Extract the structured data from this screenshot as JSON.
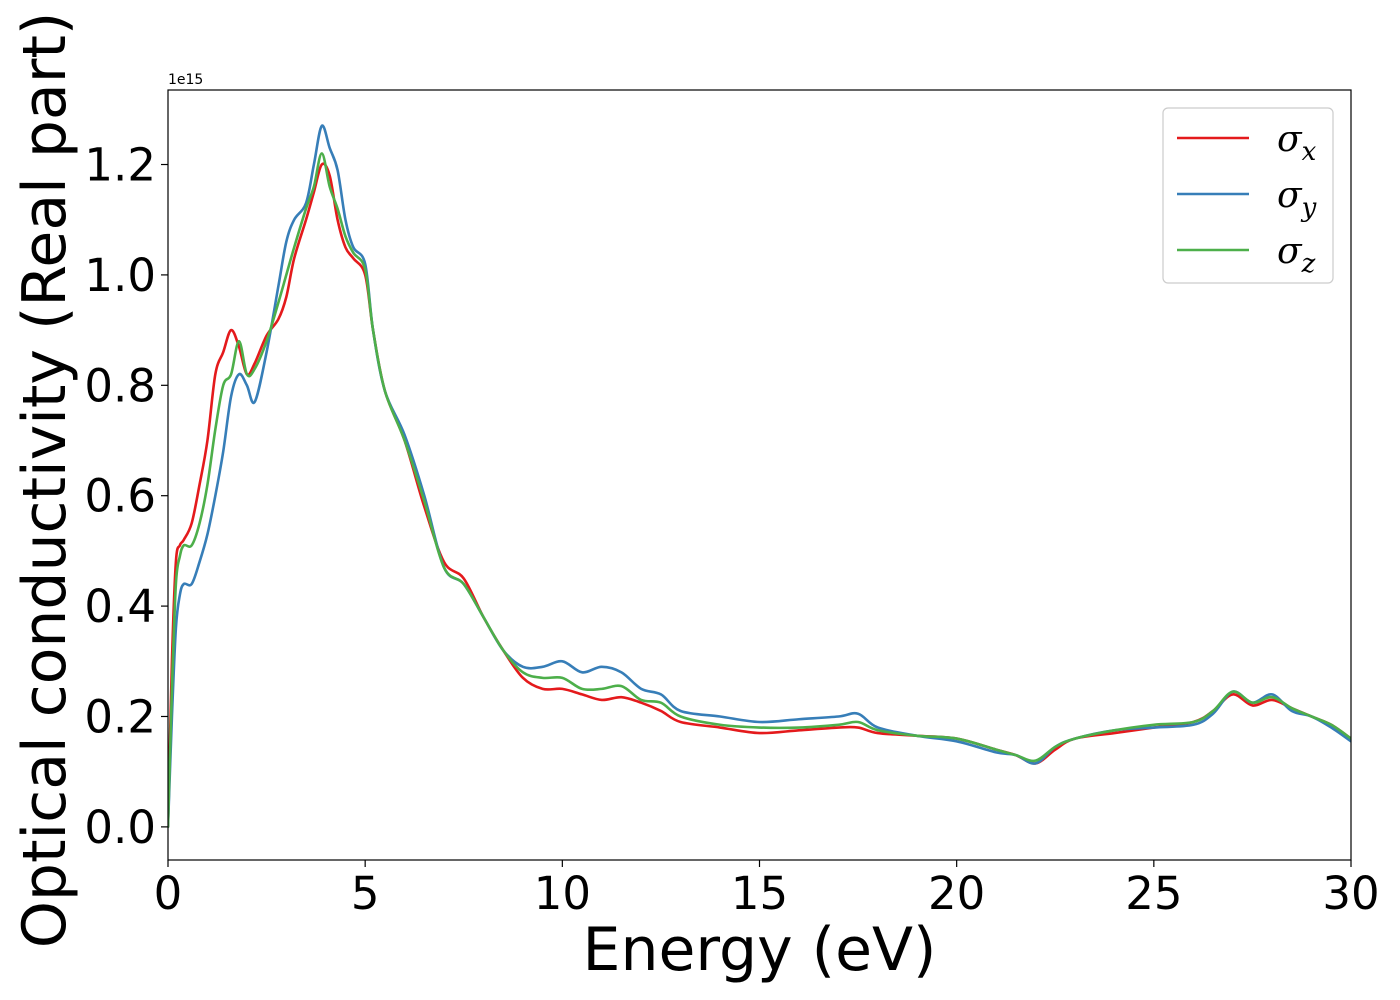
{
  "chart_data": {
    "type": "line",
    "title": "",
    "xlabel": "Energy (eV)",
    "ylabel": "Optical conductivity (Real part)",
    "y_offset_text": "1e15",
    "xlim": [
      0,
      30
    ],
    "ylim": [
      -0.06,
      1.335
    ],
    "x_ticks": [
      0,
      5,
      10,
      15,
      20,
      25,
      30
    ],
    "x_tick_labels": [
      "0",
      "5",
      "10",
      "15",
      "20",
      "25",
      "30"
    ],
    "y_ticks": [
      0.0,
      0.2,
      0.4,
      0.6,
      0.8,
      1.0,
      1.2
    ],
    "y_tick_labels": [
      "0.0",
      "0.2",
      "0.4",
      "0.6",
      "0.8",
      "1.0",
      "1.2"
    ],
    "grid": false,
    "legend_position": "top-right",
    "series": [
      {
        "name": "σ",
        "subscript": "x",
        "color": "#e41a1c",
        "x": [
          0,
          0.1,
          0.2,
          0.3,
          0.4,
          0.6,
          0.8,
          1.0,
          1.2,
          1.4,
          1.6,
          1.8,
          2.0,
          2.2,
          2.5,
          2.8,
          3.0,
          3.2,
          3.5,
          3.7,
          3.9,
          4.1,
          4.3,
          4.5,
          4.7,
          5.0,
          5.2,
          5.5,
          6.0,
          6.5,
          7.0,
          7.5,
          8.0,
          8.5,
          9.0,
          9.5,
          10.0,
          10.5,
          11.0,
          11.5,
          12.0,
          12.5,
          13.0,
          14.0,
          15.0,
          16.0,
          17.0,
          17.5,
          18.0,
          19.0,
          20.0,
          21.0,
          21.5,
          22.0,
          22.5,
          23.0,
          24.0,
          25.0,
          26.0,
          26.5,
          27.0,
          27.5,
          28.0,
          28.5,
          29.0,
          29.5,
          30.0
        ],
        "y": [
          0.0,
          0.3,
          0.48,
          0.51,
          0.52,
          0.55,
          0.62,
          0.7,
          0.82,
          0.86,
          0.9,
          0.87,
          0.82,
          0.84,
          0.89,
          0.92,
          0.96,
          1.03,
          1.1,
          1.15,
          1.2,
          1.18,
          1.1,
          1.05,
          1.03,
          1.0,
          0.9,
          0.79,
          0.7,
          0.58,
          0.48,
          0.45,
          0.38,
          0.32,
          0.27,
          0.25,
          0.25,
          0.24,
          0.23,
          0.235,
          0.225,
          0.21,
          0.19,
          0.18,
          0.17,
          0.175,
          0.18,
          0.18,
          0.17,
          0.165,
          0.16,
          0.14,
          0.13,
          0.115,
          0.14,
          0.16,
          0.17,
          0.18,
          0.19,
          0.21,
          0.24,
          0.22,
          0.23,
          0.215,
          0.2,
          0.185,
          0.16
        ]
      },
      {
        "name": "σ",
        "subscript": "y",
        "color": "#377eb8",
        "x": [
          0,
          0.1,
          0.2,
          0.3,
          0.4,
          0.6,
          0.8,
          1.0,
          1.2,
          1.4,
          1.6,
          1.8,
          2.0,
          2.2,
          2.5,
          2.8,
          3.0,
          3.2,
          3.5,
          3.7,
          3.9,
          4.1,
          4.3,
          4.5,
          4.7,
          5.0,
          5.2,
          5.5,
          6.0,
          6.5,
          7.0,
          7.5,
          8.0,
          8.5,
          9.0,
          9.5,
          10.0,
          10.5,
          11.0,
          11.5,
          12.0,
          12.5,
          13.0,
          14.0,
          15.0,
          16.0,
          17.0,
          17.5,
          18.0,
          19.0,
          20.0,
          21.0,
          21.5,
          22.0,
          22.5,
          23.0,
          24.0,
          25.0,
          26.0,
          26.5,
          27.0,
          27.5,
          28.0,
          28.5,
          29.0,
          29.5,
          30.0
        ],
        "y": [
          0.0,
          0.2,
          0.36,
          0.42,
          0.44,
          0.44,
          0.48,
          0.53,
          0.6,
          0.68,
          0.78,
          0.82,
          0.8,
          0.77,
          0.86,
          0.98,
          1.06,
          1.1,
          1.13,
          1.2,
          1.27,
          1.23,
          1.19,
          1.1,
          1.05,
          1.02,
          0.9,
          0.79,
          0.71,
          0.6,
          0.47,
          0.44,
          0.38,
          0.32,
          0.29,
          0.29,
          0.3,
          0.28,
          0.29,
          0.28,
          0.25,
          0.24,
          0.21,
          0.2,
          0.19,
          0.195,
          0.2,
          0.205,
          0.18,
          0.165,
          0.155,
          0.135,
          0.13,
          0.115,
          0.145,
          0.16,
          0.175,
          0.18,
          0.185,
          0.205,
          0.245,
          0.225,
          0.24,
          0.21,
          0.2,
          0.18,
          0.155
        ]
      },
      {
        "name": "σ",
        "subscript": "z",
        "color": "#4daf4a",
        "x": [
          0,
          0.1,
          0.2,
          0.3,
          0.4,
          0.6,
          0.8,
          1.0,
          1.2,
          1.4,
          1.6,
          1.8,
          2.0,
          2.2,
          2.5,
          2.8,
          3.0,
          3.2,
          3.5,
          3.7,
          3.9,
          4.1,
          4.3,
          4.5,
          4.7,
          5.0,
          5.2,
          5.5,
          6.0,
          6.5,
          7.0,
          7.5,
          8.0,
          8.5,
          9.0,
          9.5,
          10.0,
          10.5,
          11.0,
          11.5,
          12.0,
          12.5,
          13.0,
          14.0,
          15.0,
          16.0,
          17.0,
          17.5,
          18.0,
          19.0,
          20.0,
          21.0,
          21.5,
          22.0,
          22.5,
          23.0,
          24.0,
          25.0,
          26.0,
          26.5,
          27.0,
          27.5,
          28.0,
          28.5,
          29.0,
          29.5,
          30.0
        ],
        "y": [
          0.0,
          0.25,
          0.44,
          0.49,
          0.51,
          0.51,
          0.55,
          0.62,
          0.72,
          0.8,
          0.82,
          0.88,
          0.82,
          0.83,
          0.88,
          0.95,
          1.0,
          1.05,
          1.12,
          1.16,
          1.22,
          1.16,
          1.12,
          1.07,
          1.04,
          1.01,
          0.9,
          0.79,
          0.7,
          0.59,
          0.47,
          0.44,
          0.38,
          0.32,
          0.28,
          0.27,
          0.27,
          0.25,
          0.25,
          0.255,
          0.23,
          0.225,
          0.2,
          0.185,
          0.18,
          0.18,
          0.185,
          0.19,
          0.175,
          0.165,
          0.16,
          0.14,
          0.13,
          0.12,
          0.145,
          0.16,
          0.175,
          0.185,
          0.19,
          0.21,
          0.245,
          0.225,
          0.235,
          0.215,
          0.2,
          0.185,
          0.16
        ]
      }
    ]
  }
}
